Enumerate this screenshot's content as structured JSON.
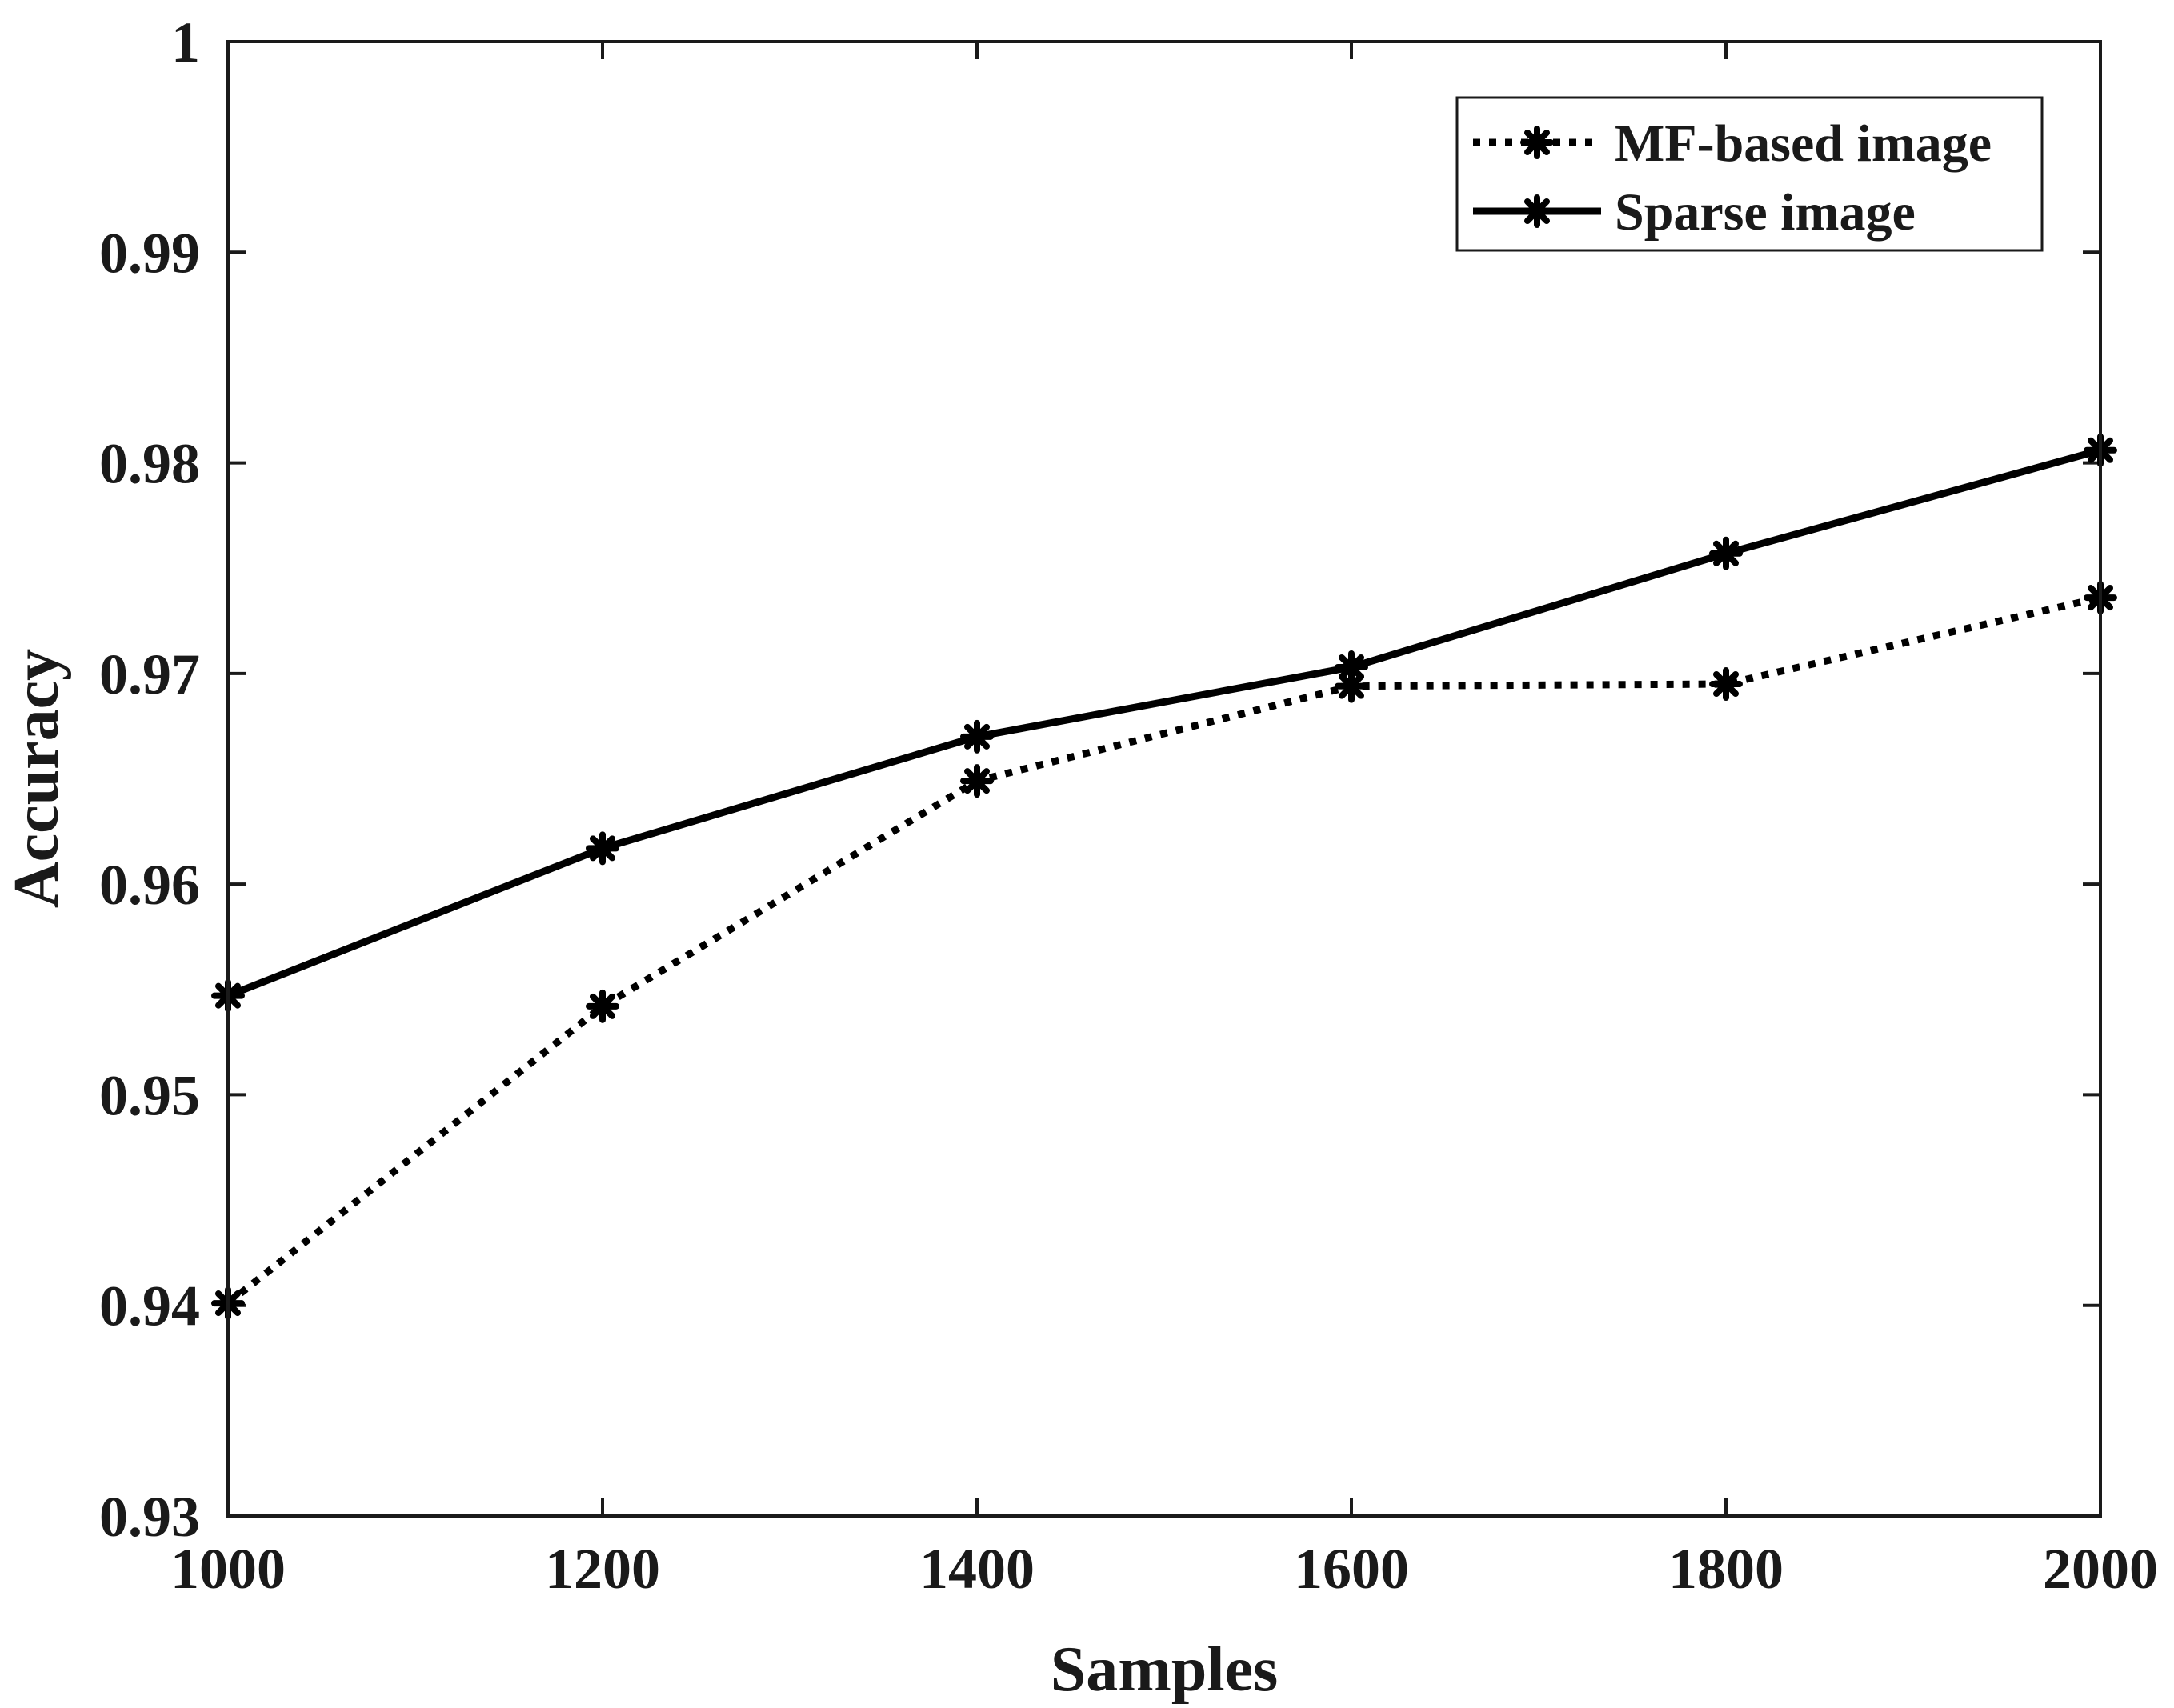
{
  "chart_data": {
    "type": "line",
    "xlabel": "Samples",
    "ylabel": "Accuracy",
    "xlim": [
      1000,
      2000
    ],
    "ylim": [
      0.93,
      1.0
    ],
    "x": [
      1000,
      1200,
      1400,
      1600,
      1800,
      2000
    ],
    "xticks": [
      "1000",
      "1200",
      "1400",
      "1600",
      "1800",
      "2000"
    ],
    "yticks": [
      "0.93",
      "0.94",
      "0.95",
      "0.96",
      "0.97",
      "0.98",
      "0.99",
      "1"
    ],
    "legend_position": "top-right",
    "grid": false,
    "series": [
      {
        "name": "MF-based image",
        "style": "dotted",
        "marker": "asterisk",
        "values": [
          0.9401,
          0.9542,
          0.9649,
          0.9694,
          0.9695,
          0.9736
        ]
      },
      {
        "name": "Sparse image",
        "style": "solid",
        "marker": "asterisk",
        "values": [
          0.9547,
          0.9617,
          0.967,
          0.9703,
          0.9757,
          0.9806
        ]
      }
    ]
  },
  "colors": {
    "line": "#000000",
    "axis": "#1a1a1a",
    "background": "#ffffff"
  }
}
